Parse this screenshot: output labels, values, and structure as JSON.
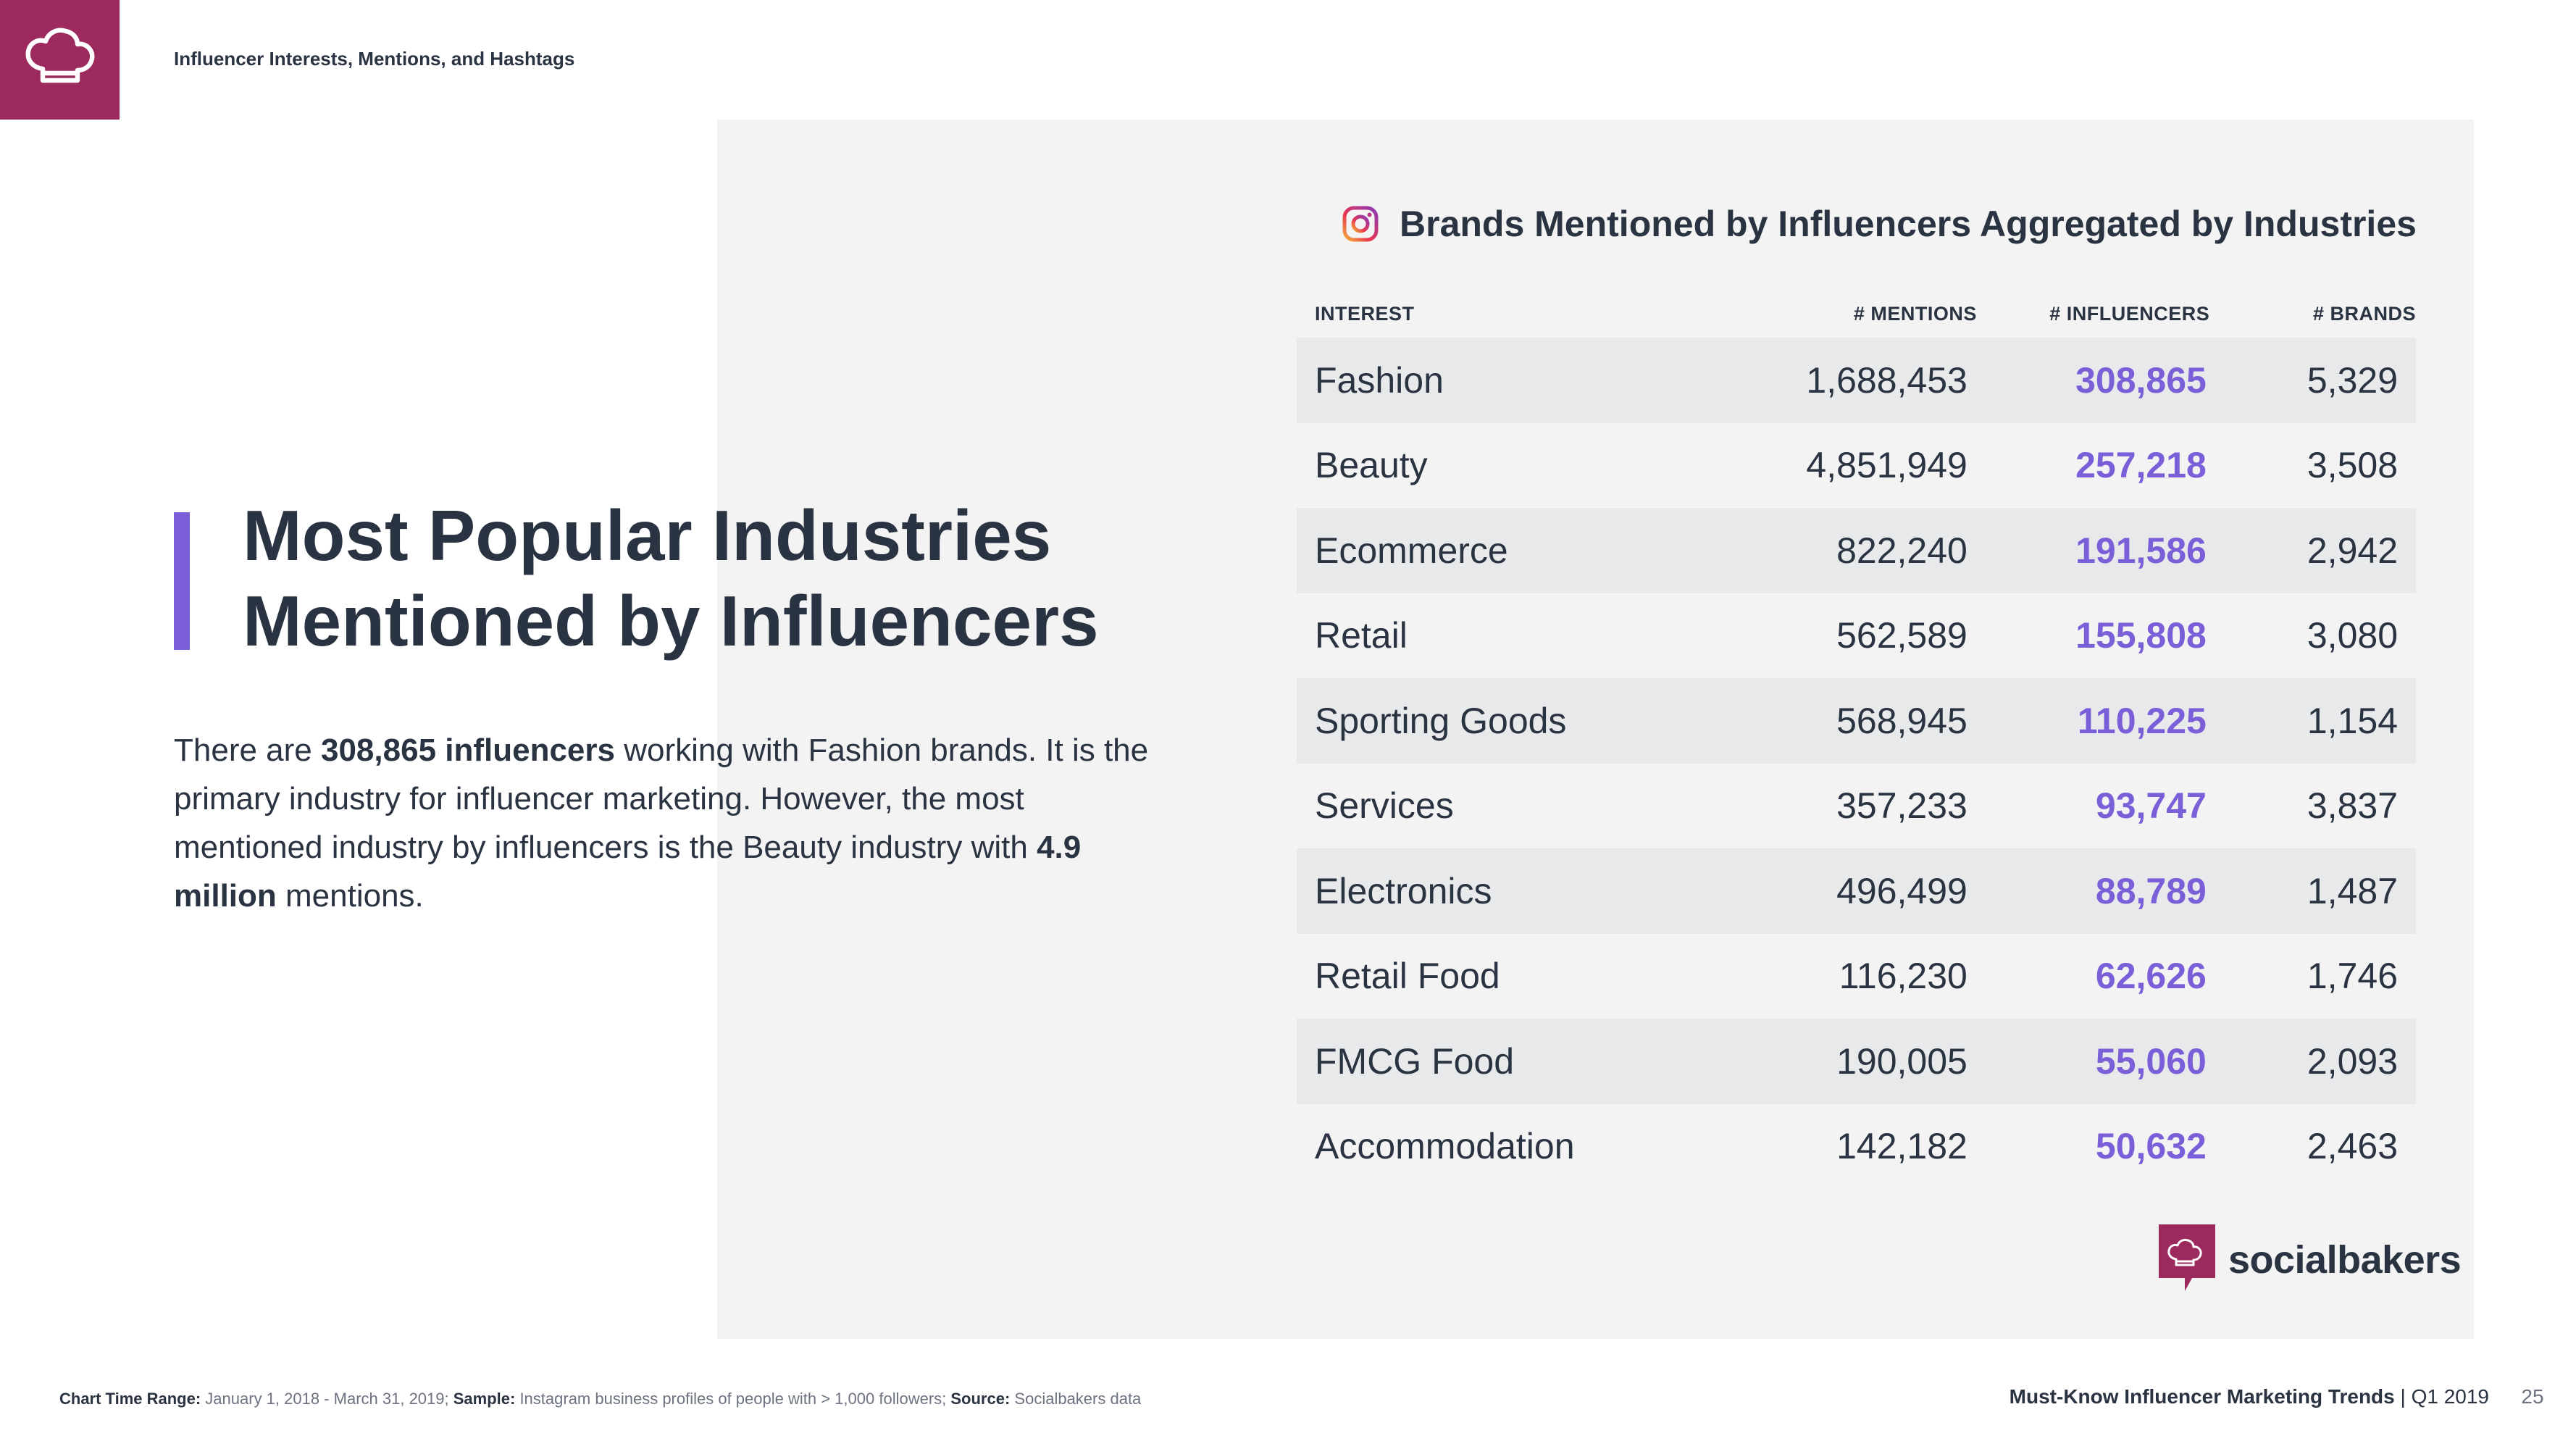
{
  "header": {
    "title": "Influencer Interests, Mentions, and Hashtags"
  },
  "heading": {
    "line1": "Most Popular Industries",
    "line2": "Mentioned by Influencers"
  },
  "description": {
    "part1": "There are ",
    "bold1": "308,865 influencers",
    "part2": " working with Fashion brands. It is the primary industry for influencer marketing. However, the most mentioned industry by influencers is the Beauty industry with ",
    "bold2": "4.9 million",
    "part3": " mentions."
  },
  "table": {
    "title": "Brands Mentioned by Influencers Aggregated by Industries",
    "icon": "instagram-icon",
    "headers": {
      "interest": "INTEREST",
      "mentions": "# MENTIONS",
      "influencers": "# INFLUENCERS",
      "brands": "# BRANDS"
    },
    "rows": [
      {
        "interest": "Fashion",
        "mentions": "1,688,453",
        "influencers": "308,865",
        "brands": "5,329"
      },
      {
        "interest": "Beauty",
        "mentions": "4,851,949",
        "influencers": "257,218",
        "brands": "3,508"
      },
      {
        "interest": "Ecommerce",
        "mentions": "822,240",
        "influencers": "191,586",
        "brands": "2,942"
      },
      {
        "interest": "Retail",
        "mentions": "562,589",
        "influencers": "155,808",
        "brands": "3,080"
      },
      {
        "interest": "Sporting Goods",
        "mentions": "568,945",
        "influencers": "110,225",
        "brands": "1,154"
      },
      {
        "interest": "Services",
        "mentions": "357,233",
        "influencers": "93,747",
        "brands": "3,837"
      },
      {
        "interest": "Electronics",
        "mentions": "496,499",
        "influencers": "88,789",
        "brands": "1,487"
      },
      {
        "interest": "Retail Food",
        "mentions": "116,230",
        "influencers": "62,626",
        "brands": "1,746"
      },
      {
        "interest": "FMCG Food",
        "mentions": "190,005",
        "influencers": "55,060",
        "brands": "2,093"
      },
      {
        "interest": "Accommodation",
        "mentions": "142,182",
        "influencers": "50,632",
        "brands": "2,463"
      }
    ]
  },
  "brand": {
    "name": "socialbakers",
    "icon": "chef-hat-icon"
  },
  "footer": {
    "range_label": "Chart Time Range:",
    "range_value": " January 1, 2018 - March 31, 2019; ",
    "sample_label": "Sample:",
    "sample_value": " Instagram business profiles of people with > 1,000 followers; ",
    "source_label": "Source:",
    "source_value": " Socialbakers data",
    "report_title": "Must-Know Influencer Marketing Trends",
    "report_period": " | Q1 2019",
    "page_number": "25"
  },
  "colors": {
    "brand": "#9c2a5f",
    "accent": "#7b5fd9",
    "text": "#2a3341",
    "panel": "#f3f3f3",
    "row_shade": "#e8e9eb"
  }
}
